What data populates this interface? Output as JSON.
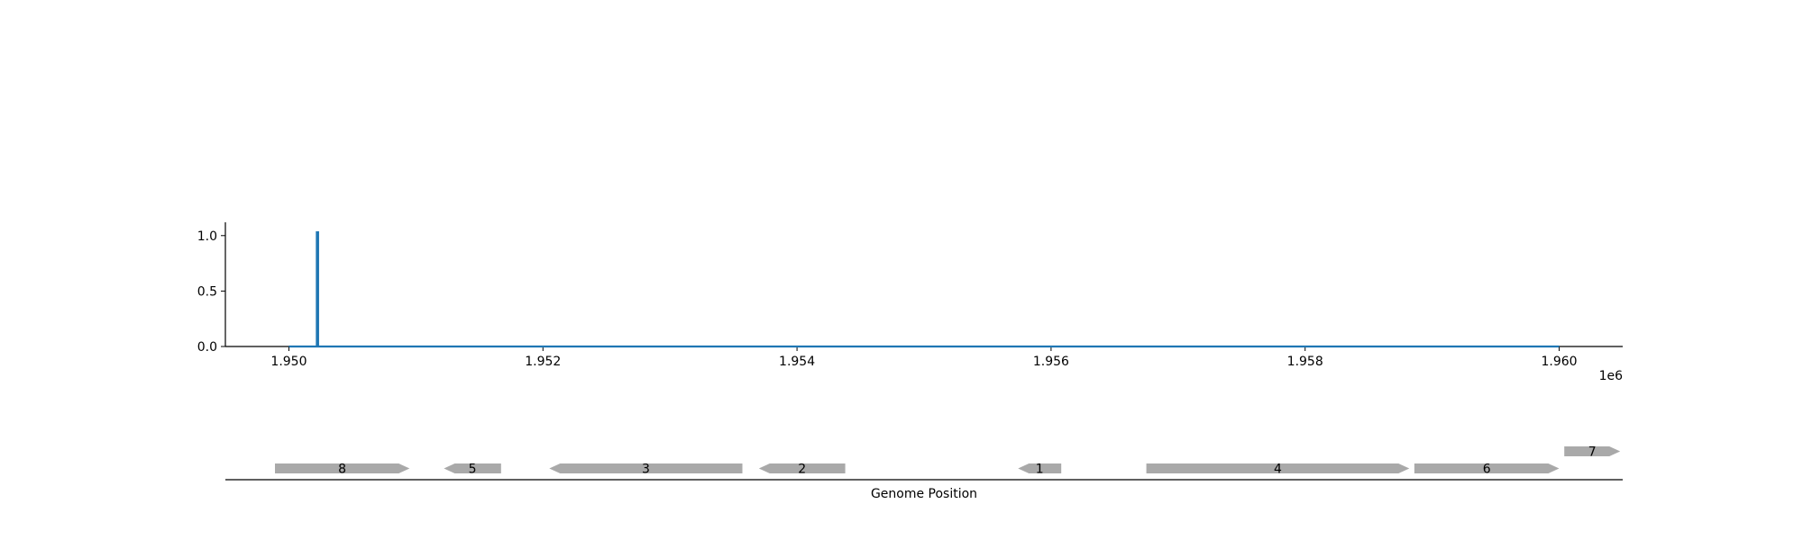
{
  "chart_data": {
    "type": "line",
    "title": "",
    "xlabel": "Genome Position",
    "ylabel": "",
    "x_offset_label": "1e6",
    "xlim": [
      1949500,
      1960500
    ],
    "ylim": [
      0.0,
      1.12
    ],
    "x_ticks": [
      1950000,
      1952000,
      1954000,
      1956000,
      1958000,
      1960000
    ],
    "x_tick_labels": [
      "1.950",
      "1.952",
      "1.954",
      "1.956",
      "1.958",
      "1.960"
    ],
    "y_ticks": [
      0.0,
      0.5,
      1.0
    ],
    "y_tick_labels": [
      "0.0",
      "0.5",
      "1.0"
    ],
    "grid": false,
    "series": [
      {
        "color": "#1f77b4",
        "x": [
          1950000,
          1950220,
          1950220,
          1950230,
          1950230,
          1960000
        ],
        "y": [
          0.0,
          0.0,
          1.03,
          1.03,
          0.0,
          0.0
        ]
      }
    ],
    "genes": [
      {
        "label": "8",
        "start": 1949890,
        "end": 1950950,
        "strand": "+",
        "row": 0
      },
      {
        "label": "5",
        "start": 1951220,
        "end": 1951670,
        "strand": "-",
        "row": 0
      },
      {
        "label": "3",
        "start": 1952050,
        "end": 1953570,
        "strand": "-",
        "row": 0
      },
      {
        "label": "2",
        "start": 1953700,
        "end": 1954380,
        "strand": "-",
        "row": 0
      },
      {
        "label": "1",
        "start": 1955740,
        "end": 1956080,
        "strand": "-",
        "row": 0
      },
      {
        "label": "4",
        "start": 1956750,
        "end": 1958820,
        "strand": "+",
        "row": 0
      },
      {
        "label": "6",
        "start": 1958860,
        "end": 1960000,
        "strand": "+",
        "row": 0
      },
      {
        "label": "7",
        "start": 1960040,
        "end": 1960480,
        "strand": "+",
        "row": 1
      }
    ],
    "gene_color": "#a9a9a9"
  }
}
